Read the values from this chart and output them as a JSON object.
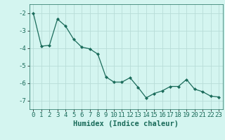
{
  "xlabel": "Humidex (Indice chaleur)",
  "x": [
    0,
    1,
    2,
    3,
    4,
    5,
    6,
    7,
    8,
    9,
    10,
    11,
    12,
    13,
    14,
    15,
    16,
    17,
    18,
    19,
    20,
    21,
    22,
    23
  ],
  "y": [
    -2.0,
    -3.9,
    -3.85,
    -2.35,
    -2.75,
    -3.5,
    -3.95,
    -4.05,
    -4.35,
    -5.65,
    -5.95,
    -5.95,
    -5.7,
    -6.25,
    -6.85,
    -6.6,
    -6.45,
    -6.2,
    -6.2,
    -5.8,
    -6.35,
    -6.5,
    -6.75,
    -6.8
  ],
  "line_color": "#1a6b5a",
  "marker": "D",
  "marker_size": 2.0,
  "background_color": "#d4f5f0",
  "grid_color": "#b8ddd8",
  "ylim": [
    -7.5,
    -1.5
  ],
  "xlim": [
    -0.5,
    23.5
  ],
  "yticks": [
    -7,
    -6,
    -5,
    -4,
    -3,
    -2
  ],
  "xticks": [
    0,
    1,
    2,
    3,
    4,
    5,
    6,
    7,
    8,
    9,
    10,
    11,
    12,
    13,
    14,
    15,
    16,
    17,
    18,
    19,
    20,
    21,
    22,
    23
  ],
  "tick_fontsize": 6.5,
  "xlabel_fontsize": 7.5,
  "linewidth": 0.9
}
